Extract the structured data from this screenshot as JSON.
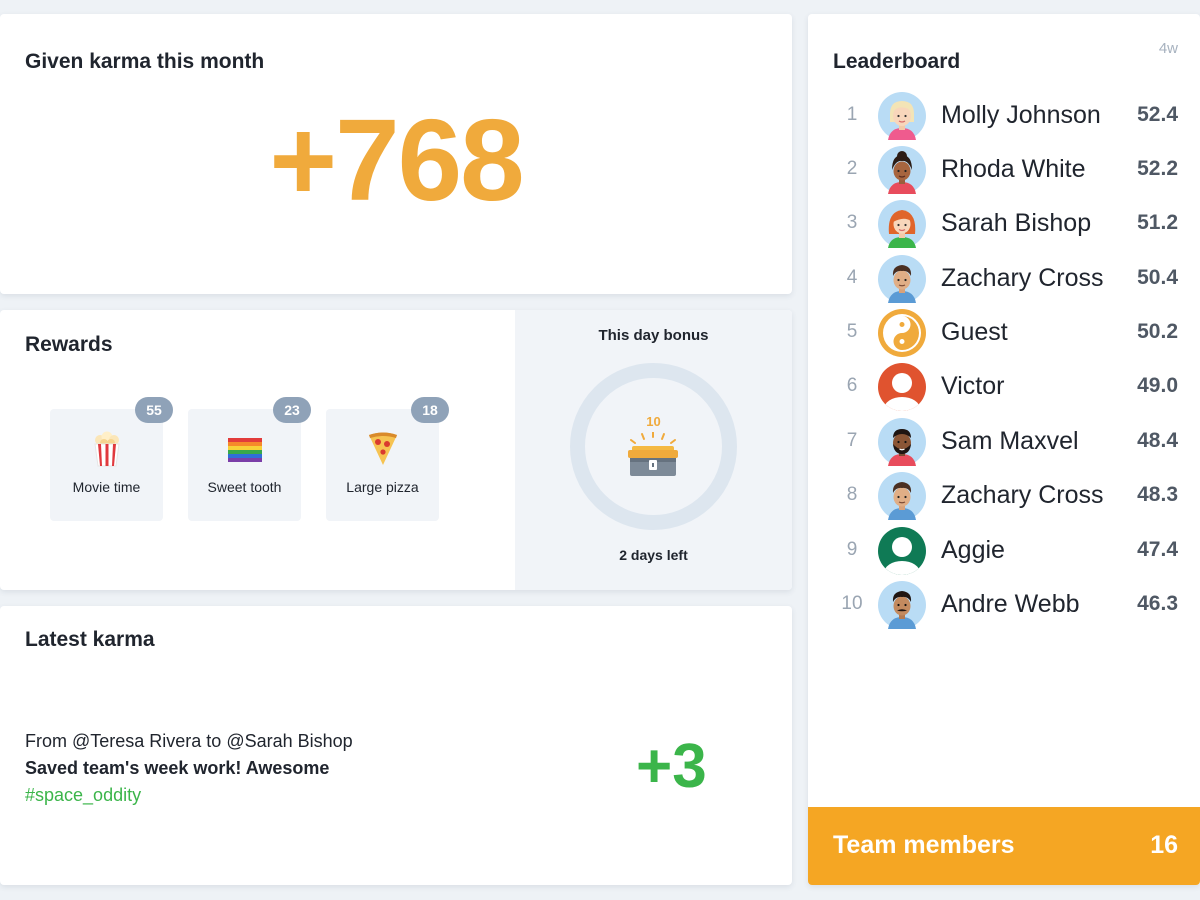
{
  "karma": {
    "title": "Given karma this month",
    "value": "+768",
    "accent_color": "#f0aa3c"
  },
  "rewards": {
    "title": "Rewards",
    "items": [
      {
        "label": "Movie time",
        "count": "55",
        "icon": "popcorn-icon"
      },
      {
        "label": "Sweet tooth",
        "count": "23",
        "icon": "rainbow-flag-icon"
      },
      {
        "label": "Large pizza",
        "count": "18",
        "icon": "pizza-icon"
      }
    ],
    "bonus": {
      "title": "This day bonus",
      "amount": "10",
      "icon": "treasure-chest-icon",
      "time_left": "2 days left"
    }
  },
  "latest": {
    "title": "Latest karma",
    "from": "From @Teresa Rivera to @Sarah Bishop",
    "message": "Saved team's week work! Awesome",
    "tag": "#space_oddity",
    "points": "+3",
    "accent_color": "#3bb54a"
  },
  "leaderboard": {
    "title": "Leaderboard",
    "period": "4w",
    "rows": [
      {
        "rank": "1",
        "name": "Molly Johnson",
        "score": "52.4",
        "avatar": "avatar-blonde-woman"
      },
      {
        "rank": "2",
        "name": "Rhoda White",
        "score": "52.2",
        "avatar": "avatar-dark-haired-woman"
      },
      {
        "rank": "3",
        "name": "Sarah Bishop",
        "score": "51.2",
        "avatar": "avatar-redhead-woman"
      },
      {
        "rank": "4",
        "name": "Zachary Cross",
        "score": "50.4",
        "avatar": "avatar-man"
      },
      {
        "rank": "5",
        "name": "Guest",
        "score": "50.2",
        "avatar": "yin-yang-icon"
      },
      {
        "rank": "6",
        "name": "Victor",
        "score": "49.0",
        "avatar": "default-user-red"
      },
      {
        "rank": "7",
        "name": "Sam Maxvel",
        "score": "48.4",
        "avatar": "avatar-bearded-man"
      },
      {
        "rank": "8",
        "name": "Zachary Cross",
        "score": "48.3",
        "avatar": "avatar-man"
      },
      {
        "rank": "9",
        "name": "Aggie",
        "score": "47.4",
        "avatar": "default-user-green"
      },
      {
        "rank": "10",
        "name": "Andre Webb",
        "score": "46.3",
        "avatar": "avatar-mustache-man"
      }
    ],
    "team": {
      "label": "Team members",
      "count": "16",
      "color": "#f5a623"
    }
  }
}
